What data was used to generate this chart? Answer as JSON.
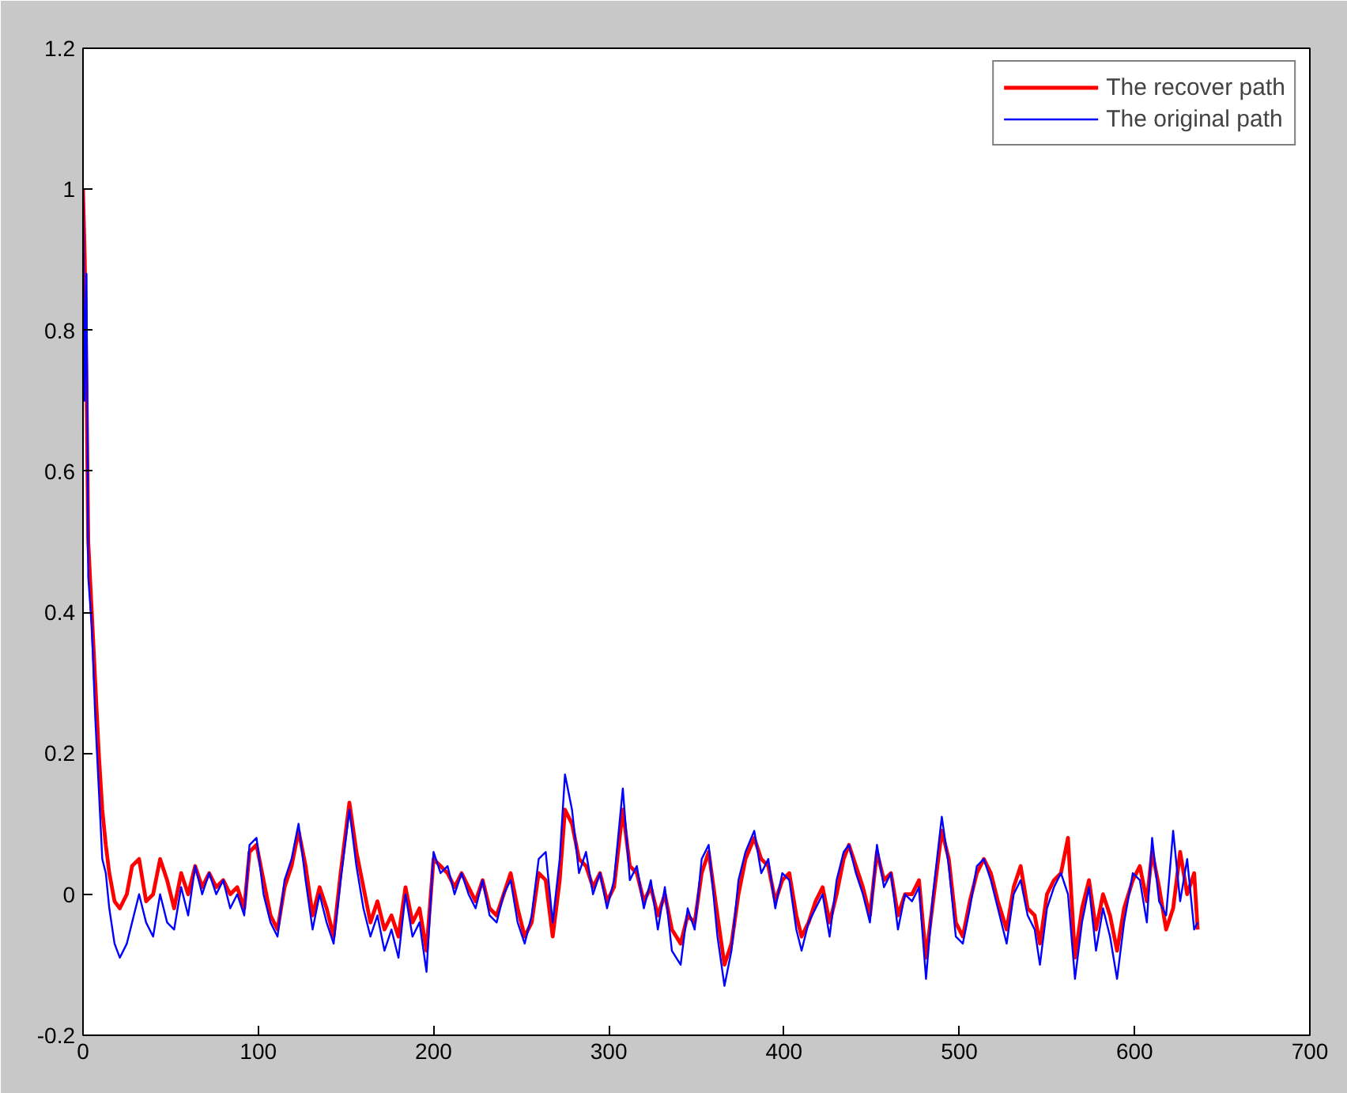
{
  "chart_data": {
    "type": "line",
    "xlim": [
      0,
      700
    ],
    "ylim": [
      -0.2,
      1.2
    ],
    "xticks": [
      0,
      100,
      200,
      300,
      400,
      500,
      600,
      700
    ],
    "yticks": [
      -0.2,
      0,
      0.2,
      0.4,
      0.6,
      0.8,
      1,
      1.2
    ],
    "grid": false,
    "legend": "top right",
    "marker": "none",
    "line_style": "solid",
    "series": [
      {
        "name": "The recover path",
        "color": "#ff0000",
        "x": [
          0,
          1,
          2,
          3,
          5,
          7,
          9,
          11,
          13,
          15,
          18,
          21,
          25,
          28,
          32,
          36,
          40,
          44,
          48,
          52,
          56,
          60,
          64,
          68,
          72,
          76,
          80,
          84,
          88,
          92,
          95,
          99,
          103,
          107,
          111,
          115,
          119,
          123,
          127,
          131,
          135,
          139,
          143,
          147,
          152,
          156,
          160,
          164,
          168,
          172,
          176,
          180,
          184,
          188,
          192,
          196,
          200,
          204,
          208,
          212,
          216,
          220,
          224,
          228,
          232,
          236,
          240,
          244,
          248,
          252,
          256,
          260,
          264,
          268,
          272,
          275,
          279,
          283,
          287,
          291,
          295,
          299,
          303,
          308,
          312,
          316,
          320,
          324,
          328,
          332,
          336,
          341,
          345,
          349,
          353,
          357,
          362,
          366,
          370,
          374,
          378,
          383,
          387,
          391,
          395,
          399,
          403,
          407,
          410,
          414,
          418,
          422,
          426,
          430,
          434,
          437,
          441,
          445,
          449,
          453,
          457,
          461,
          465,
          469,
          473,
          477,
          481,
          485,
          490,
          494,
          498,
          502,
          506,
          510,
          514,
          518,
          522,
          527,
          531,
          535,
          539,
          543,
          546,
          550,
          554,
          558,
          562,
          566,
          570,
          574,
          578,
          582,
          586,
          590,
          594,
          599,
          603,
          607,
          610,
          614,
          618,
          622,
          626,
          630,
          634,
          636
        ],
        "values": [
          1.0,
          0.9,
          0.72,
          0.5,
          0.4,
          0.3,
          0.2,
          0.12,
          0.07,
          0.03,
          -0.01,
          -0.02,
          0.0,
          0.04,
          0.05,
          -0.01,
          0.0,
          0.05,
          0.02,
          -0.02,
          0.03,
          0.0,
          0.04,
          0.01,
          0.03,
          0.01,
          0.02,
          0.0,
          0.01,
          -0.02,
          0.06,
          0.07,
          0.02,
          -0.03,
          -0.05,
          0.01,
          0.04,
          0.09,
          0.04,
          -0.03,
          0.01,
          -0.02,
          -0.06,
          0.03,
          0.13,
          0.06,
          0.01,
          -0.04,
          -0.01,
          -0.05,
          -0.03,
          -0.06,
          0.01,
          -0.04,
          -0.02,
          -0.08,
          0.05,
          0.04,
          0.03,
          0.01,
          0.03,
          0.01,
          -0.01,
          0.02,
          -0.02,
          -0.03,
          0.0,
          0.03,
          -0.02,
          -0.06,
          -0.04,
          0.03,
          0.02,
          -0.06,
          0.02,
          0.12,
          0.1,
          0.05,
          0.04,
          0.01,
          0.03,
          -0.01,
          0.01,
          0.12,
          0.04,
          0.03,
          -0.01,
          0.01,
          -0.03,
          0.0,
          -0.05,
          -0.07,
          -0.03,
          -0.04,
          0.03,
          0.06,
          -0.03,
          -0.1,
          -0.07,
          0.0,
          0.05,
          0.08,
          0.05,
          0.04,
          -0.01,
          0.02,
          0.03,
          -0.03,
          -0.06,
          -0.04,
          -0.01,
          0.01,
          -0.04,
          0.0,
          0.05,
          0.07,
          0.04,
          0.01,
          -0.03,
          0.06,
          0.02,
          0.03,
          -0.03,
          0.0,
          0.0,
          0.02,
          -0.09,
          -0.01,
          0.09,
          0.05,
          -0.04,
          -0.06,
          -0.01,
          0.03,
          0.05,
          0.03,
          -0.01,
          -0.05,
          0.01,
          0.04,
          -0.02,
          -0.03,
          -0.07,
          0.0,
          0.02,
          0.03,
          0.08,
          -0.09,
          -0.02,
          0.02,
          -0.05,
          0.0,
          -0.03,
          -0.08,
          -0.02,
          0.02,
          0.04,
          -0.01,
          0.06,
          0.01,
          -0.05,
          -0.02,
          0.06,
          0.0,
          0.03,
          -0.05
        ]
      },
      {
        "name": "The original path",
        "color": "#0000ff",
        "x": [
          0,
          1,
          2,
          3,
          5,
          7,
          9,
          11,
          13,
          15,
          18,
          21,
          25,
          28,
          32,
          36,
          40,
          44,
          48,
          52,
          56,
          60,
          64,
          68,
          72,
          76,
          80,
          84,
          88,
          92,
          95,
          99,
          103,
          107,
          111,
          115,
          119,
          123,
          127,
          131,
          135,
          139,
          143,
          147,
          152,
          156,
          160,
          164,
          168,
          172,
          176,
          180,
          184,
          188,
          192,
          196,
          200,
          204,
          208,
          212,
          216,
          220,
          224,
          228,
          232,
          236,
          240,
          244,
          248,
          252,
          256,
          260,
          264,
          268,
          272,
          275,
          279,
          283,
          287,
          291,
          295,
          299,
          303,
          308,
          312,
          316,
          320,
          324,
          328,
          332,
          336,
          341,
          345,
          349,
          353,
          357,
          362,
          366,
          370,
          374,
          378,
          383,
          387,
          391,
          395,
          399,
          403,
          407,
          410,
          414,
          418,
          422,
          426,
          430,
          434,
          437,
          441,
          445,
          449,
          453,
          457,
          461,
          465,
          469,
          473,
          477,
          481,
          485,
          490,
          494,
          498,
          502,
          506,
          510,
          514,
          518,
          522,
          527,
          531,
          535,
          539,
          543,
          546,
          550,
          554,
          558,
          562,
          566,
          570,
          574,
          578,
          582,
          586,
          590,
          594,
          599,
          603,
          607,
          610,
          614,
          618,
          622,
          626,
          630,
          634,
          636
        ],
        "values": [
          1.0,
          0.7,
          0.88,
          0.45,
          0.38,
          0.25,
          0.15,
          0.05,
          0.03,
          -0.02,
          -0.07,
          -0.09,
          -0.07,
          -0.04,
          0.0,
          -0.04,
          -0.06,
          0.0,
          -0.04,
          -0.05,
          0.01,
          -0.03,
          0.04,
          0.0,
          0.03,
          0.0,
          0.02,
          -0.02,
          0.0,
          -0.03,
          0.07,
          0.08,
          0.0,
          -0.04,
          -0.06,
          0.02,
          0.05,
          0.1,
          0.02,
          -0.05,
          0.0,
          -0.04,
          -0.07,
          0.02,
          0.12,
          0.04,
          -0.02,
          -0.06,
          -0.03,
          -0.08,
          -0.05,
          -0.09,
          0.0,
          -0.06,
          -0.04,
          -0.11,
          0.06,
          0.03,
          0.04,
          0.0,
          0.03,
          0.0,
          -0.02,
          0.02,
          -0.03,
          -0.04,
          0.0,
          0.02,
          -0.04,
          -0.07,
          -0.03,
          0.05,
          0.06,
          -0.04,
          0.05,
          0.17,
          0.12,
          0.03,
          0.06,
          0.0,
          0.03,
          -0.02,
          0.02,
          0.15,
          0.02,
          0.04,
          -0.02,
          0.02,
          -0.05,
          0.01,
          -0.08,
          -0.1,
          -0.02,
          -0.05,
          0.05,
          0.07,
          -0.06,
          -0.13,
          -0.08,
          0.02,
          0.06,
          0.09,
          0.03,
          0.05,
          -0.02,
          0.03,
          0.02,
          -0.05,
          -0.08,
          -0.04,
          -0.02,
          0.0,
          -0.06,
          0.02,
          0.06,
          0.07,
          0.03,
          0.0,
          -0.04,
          0.07,
          0.01,
          0.03,
          -0.05,
          0.0,
          -0.01,
          0.01,
          -0.12,
          0.0,
          0.11,
          0.04,
          -0.06,
          -0.07,
          -0.02,
          0.04,
          0.05,
          0.02,
          -0.02,
          -0.07,
          0.0,
          0.02,
          -0.03,
          -0.05,
          -0.1,
          -0.02,
          0.01,
          0.03,
          0.0,
          -0.12,
          -0.04,
          0.01,
          -0.08,
          -0.02,
          -0.06,
          -0.12,
          -0.04,
          0.03,
          0.02,
          -0.04,
          0.08,
          -0.01,
          -0.03,
          0.09,
          -0.01,
          0.05,
          -0.05,
          -0.04
        ]
      }
    ]
  }
}
